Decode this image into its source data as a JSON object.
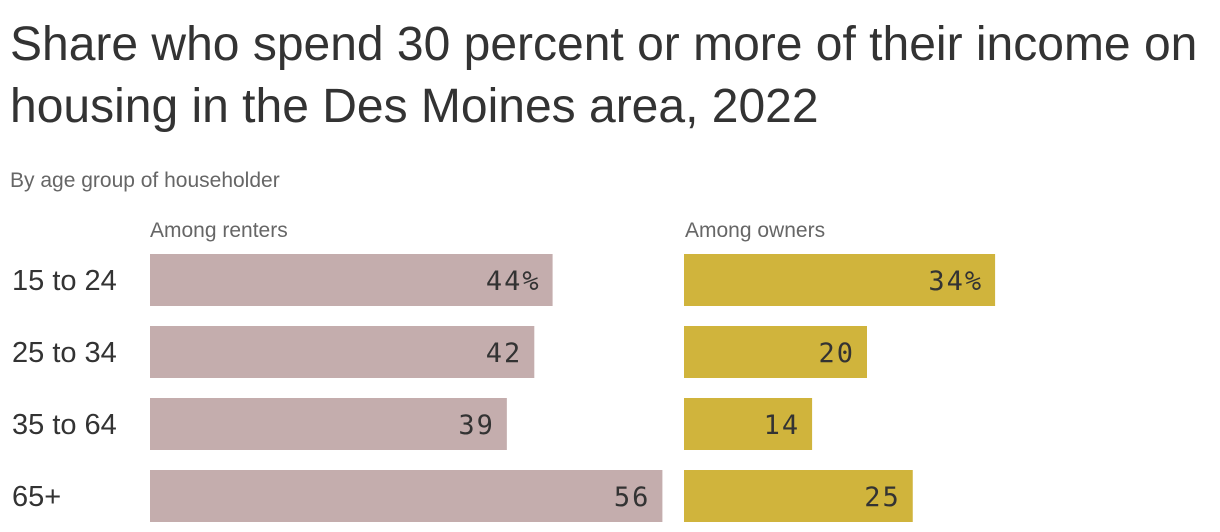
{
  "title": "Share who spend 30 percent or more of their income on housing in the Des Moines area, 2022",
  "subtitle": "By age group of householder",
  "colors": {
    "renters": "#c4adad",
    "owners": "#d0b43c",
    "text": "#333333",
    "muted": "#666666"
  },
  "chart_data": {
    "type": "bar",
    "orientation": "horizontal",
    "categories": [
      "15 to 24",
      "25 to 34",
      "35 to 64",
      "65+"
    ],
    "series": [
      {
        "name": "Among renters",
        "values": [
          44,
          42,
          39,
          56
        ],
        "labels": [
          "44%",
          "42",
          "39",
          "56"
        ]
      },
      {
        "name": "Among owners",
        "values": [
          34,
          20,
          14,
          25
        ],
        "labels": [
          "34%",
          "20",
          "14",
          "25"
        ]
      }
    ],
    "title": "Share who spend 30 percent or more of their income on housing in the Des Moines area, 2022",
    "subtitle": "By age group of householder",
    "unit": "%",
    "grid": false,
    "legend": "none"
  }
}
